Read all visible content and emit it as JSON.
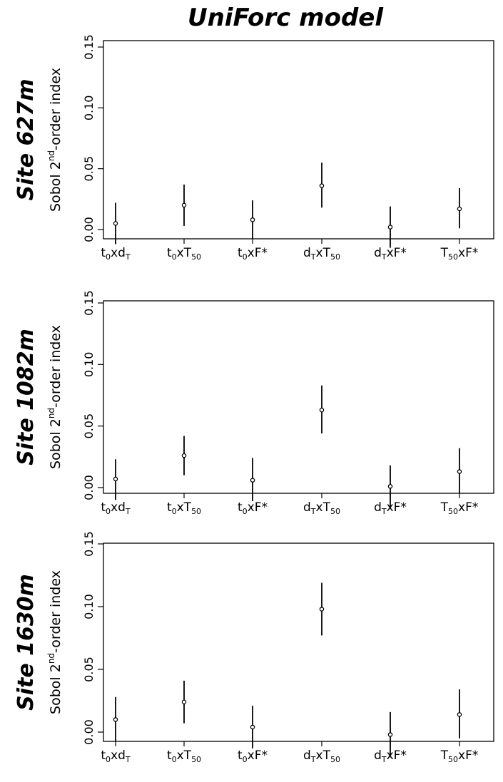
{
  "figure": {
    "title": "UniForc model"
  },
  "chart_data": [
    {
      "type": "scatter",
      "site_label": "Site 627m",
      "ylabel": {
        "main": "Sobol 2",
        "sup": "nd",
        "rest": "-order index"
      },
      "ylim": [
        0,
        0.15
      ],
      "yticks": [
        "0.00",
        "0.05",
        "0.10",
        "0.15"
      ],
      "categories": [
        {
          "main": "t",
          "sub": "0",
          "rest": "xd",
          "sub2": "T"
        },
        {
          "main": "t",
          "sub": "0",
          "rest": "xT",
          "sub2": "50"
        },
        {
          "main": "t",
          "sub": "0",
          "rest": "xF*",
          "sub2": ""
        },
        {
          "main": "d",
          "sub": "T",
          "rest": "xT",
          "sub2": "50"
        },
        {
          "main": "d",
          "sub": "T",
          "rest": "xF*",
          "sub2": ""
        },
        {
          "main": "T",
          "sub": "50",
          "rest": "xF*",
          "sub2": ""
        }
      ],
      "values": [
        0.005,
        0.02,
        0.008,
        0.036,
        0.002,
        0.017
      ],
      "lower": [
        -0.012,
        0.003,
        -0.008,
        0.018,
        -0.015,
        0.001
      ],
      "upper": [
        0.022,
        0.037,
        0.024,
        0.055,
        0.019,
        0.034
      ]
    },
    {
      "type": "scatter",
      "site_label": "Site 1082m",
      "ylabel": {
        "main": "Sobol 2",
        "sup": "nd",
        "rest": "-order index"
      },
      "ylim": [
        0,
        0.15
      ],
      "yticks": [
        "0.00",
        "0.05",
        "0.10",
        "0.15"
      ],
      "categories": [
        {
          "main": "t",
          "sub": "0",
          "rest": "xd",
          "sub2": "T"
        },
        {
          "main": "t",
          "sub": "0",
          "rest": "xT",
          "sub2": "50"
        },
        {
          "main": "t",
          "sub": "0",
          "rest": "xF*",
          "sub2": ""
        },
        {
          "main": "d",
          "sub": "T",
          "rest": "xT",
          "sub2": "50"
        },
        {
          "main": "d",
          "sub": "T",
          "rest": "xF*",
          "sub2": ""
        },
        {
          "main": "T",
          "sub": "50",
          "rest": "xF*",
          "sub2": ""
        }
      ],
      "values": [
        0.007,
        0.026,
        0.006,
        0.063,
        0.001,
        0.013
      ],
      "lower": [
        -0.01,
        0.01,
        -0.011,
        0.044,
        -0.017,
        -0.005
      ],
      "upper": [
        0.023,
        0.042,
        0.024,
        0.083,
        0.018,
        0.032
      ]
    },
    {
      "type": "scatter",
      "site_label": "Site 1630m",
      "ylabel": {
        "main": "Sobol 2",
        "sup": "nd",
        "rest": "-order index"
      },
      "ylim": [
        0,
        0.15
      ],
      "yticks": [
        "0.00",
        "0.05",
        "0.10",
        "0.15"
      ],
      "categories": [
        {
          "main": "t",
          "sub": "0",
          "rest": "xd",
          "sub2": "T"
        },
        {
          "main": "t",
          "sub": "0",
          "rest": "xT",
          "sub2": "50"
        },
        {
          "main": "t",
          "sub": "0",
          "rest": "xF*",
          "sub2": ""
        },
        {
          "main": "d",
          "sub": "T",
          "rest": "xT",
          "sub2": "50"
        },
        {
          "main": "d",
          "sub": "T",
          "rest": "xF*",
          "sub2": ""
        },
        {
          "main": "T",
          "sub": "50",
          "rest": "xF*",
          "sub2": ""
        }
      ],
      "values": [
        0.01,
        0.024,
        0.004,
        0.098,
        -0.002,
        0.014
      ],
      "lower": [
        -0.008,
        0.007,
        -0.013,
        0.077,
        -0.02,
        -0.005
      ],
      "upper": [
        0.028,
        0.041,
        0.021,
        0.119,
        0.016,
        0.034
      ]
    }
  ]
}
